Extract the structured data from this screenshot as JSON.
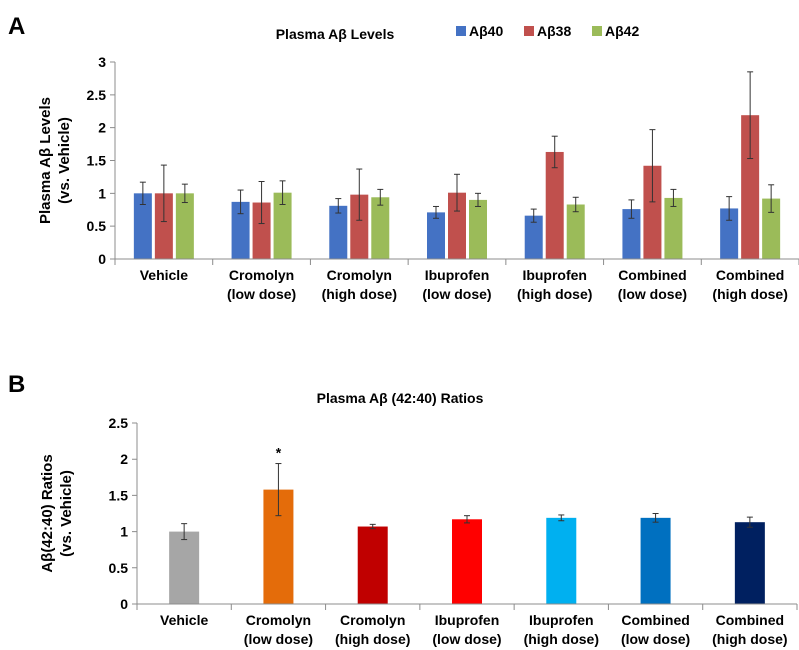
{
  "panels": {
    "a_letter": "A",
    "b_letter": "B"
  },
  "chart_data": [
    {
      "type": "bar",
      "title": "Plasma Aβ Levels",
      "ylabel": [
        "Plasma Aβ Levels",
        "(vs. Vehicle)"
      ],
      "xlabel": "",
      "ylim": [
        0,
        3
      ],
      "yticks": [
        0,
        0.5,
        1,
        1.5,
        2,
        2.5,
        3
      ],
      "ytick_labels": [
        "0",
        "0.5",
        "1",
        "1.5",
        "2",
        "2.5",
        "3"
      ],
      "legend_position": "top-right",
      "categories": [
        [
          "Vehicle"
        ],
        [
          "Cromolyn",
          "(low dose)"
        ],
        [
          "Cromolyn",
          "(high dose)"
        ],
        [
          "Ibuprofen",
          "(low dose)"
        ],
        [
          "Ibuprofen",
          "(high dose)"
        ],
        [
          "Combined",
          "(low dose)"
        ],
        [
          "Combined",
          "(high dose)"
        ]
      ],
      "series": [
        {
          "name": "Aβ40",
          "color": "#4472c4",
          "values": [
            1.0,
            0.87,
            0.81,
            0.71,
            0.66,
            0.76,
            0.77
          ],
          "errors": [
            0.17,
            0.18,
            0.11,
            0.09,
            0.1,
            0.14,
            0.18
          ]
        },
        {
          "name": "Aβ38",
          "color": "#c0504d",
          "values": [
            1.0,
            0.86,
            0.98,
            1.01,
            1.63,
            1.42,
            2.19
          ],
          "errors": [
            0.43,
            0.32,
            0.39,
            0.28,
            0.24,
            0.55,
            0.66
          ]
        },
        {
          "name": "Aβ42",
          "color": "#9bbb59",
          "values": [
            1.0,
            1.01,
            0.94,
            0.9,
            0.83,
            0.93,
            0.92
          ],
          "errors": [
            0.14,
            0.18,
            0.12,
            0.1,
            0.11,
            0.13,
            0.21
          ]
        }
      ]
    },
    {
      "type": "bar",
      "title": "Plasma Aβ (42:40) Ratios",
      "ylabel": [
        "Aβ(42:40) Ratios",
        "(vs. Vehicle)"
      ],
      "xlabel": "",
      "ylim": [
        0,
        2.5
      ],
      "yticks": [
        0,
        0.5,
        1,
        1.5,
        2,
        2.5
      ],
      "ytick_labels": [
        "0",
        "0.5",
        "1",
        "1.5",
        "2",
        "2.5"
      ],
      "categories": [
        [
          "Vehicle"
        ],
        [
          "Cromolyn",
          "(low dose)"
        ],
        [
          "Cromolyn",
          "(high dose)"
        ],
        [
          "Ibuprofen",
          "(low dose)"
        ],
        [
          "Ibuprofen",
          "(high dose)"
        ],
        [
          "Combined",
          "(low dose)"
        ],
        [
          "Combined",
          "(high dose)"
        ]
      ],
      "values": [
        1.0,
        1.58,
        1.07,
        1.17,
        1.19,
        1.19,
        1.13
      ],
      "errors": [
        0.11,
        0.36,
        0.03,
        0.05,
        0.04,
        0.06,
        0.07
      ],
      "colors": [
        "#a6a6a6",
        "#e46c0a",
        "#c00000",
        "#ff0000",
        "#00b0f0",
        "#0070c0",
        "#002060"
      ],
      "annotations": [
        {
          "category_index": 1,
          "text": "*"
        }
      ]
    }
  ]
}
